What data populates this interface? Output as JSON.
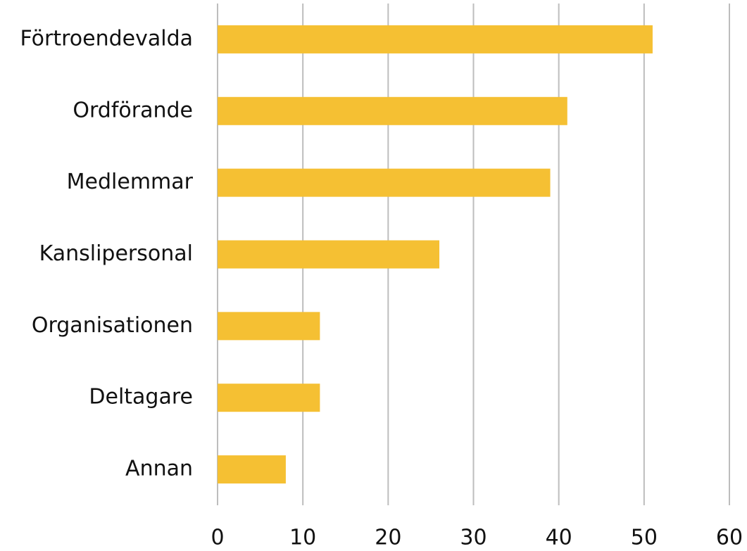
{
  "chart_data": {
    "type": "barh",
    "categories": [
      "Förtroendevalda",
      "Ordförande",
      "Medlemmar",
      "Kanslipersonal",
      "Organisationen",
      "Deltagare",
      "Annan"
    ],
    "values": [
      51,
      41,
      39,
      26,
      12,
      12,
      8
    ],
    "color": "#f5c033",
    "xlim": [
      0,
      60
    ],
    "xticks": [
      0,
      10,
      20,
      30,
      40,
      50,
      60
    ],
    "grid": true
  }
}
